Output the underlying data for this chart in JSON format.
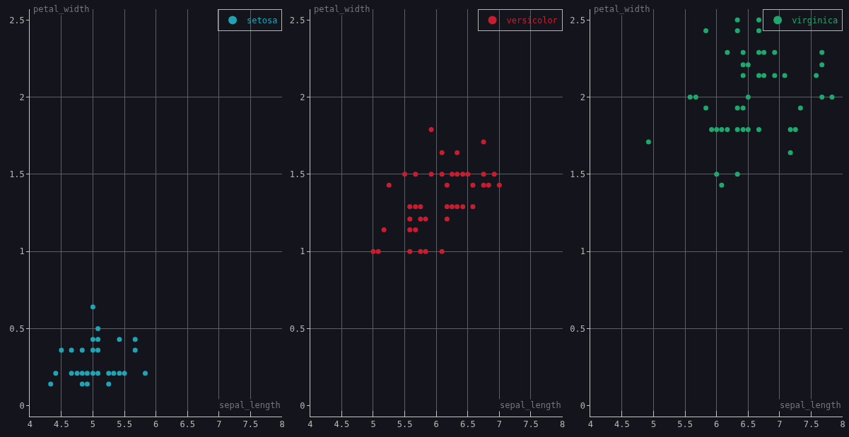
{
  "chart_data": [
    {
      "type": "scatter",
      "xlabel": "sepal_length",
      "ylabel": "petal_width",
      "xlim": [
        4,
        8
      ],
      "ylim": [
        -0.07,
        2.57
      ],
      "xticks": [
        4,
        4.5,
        5,
        5.5,
        6,
        6.5,
        7,
        7.5,
        8
      ],
      "yticks": [
        0,
        0.5,
        1,
        1.5,
        2,
        2.5
      ],
      "grid": true,
      "legend": "top right",
      "marker": "circle",
      "series": [
        {
          "name": "setosa",
          "color": "#1fa3b5",
          "x": [
            5.0,
            5.08,
            5.0,
            5.08,
            5.42,
            5.67,
            4.5,
            4.66,
            4.83,
            5.0,
            5.08,
            5.67,
            4.41,
            4.66,
            4.75,
            4.83,
            4.91,
            5.0,
            5.08,
            5.25,
            5.33,
            5.42,
            5.5,
            5.83,
            4.33,
            4.83,
            4.91,
            5.25
          ],
          "values": [
            0.64,
            0.5,
            0.43,
            0.43,
            0.43,
            0.43,
            0.36,
            0.36,
            0.36,
            0.36,
            0.36,
            0.36,
            0.21,
            0.21,
            0.21,
            0.21,
            0.21,
            0.21,
            0.21,
            0.21,
            0.21,
            0.21,
            0.21,
            0.21,
            0.14,
            0.14,
            0.14,
            0.14
          ]
        }
      ]
    },
    {
      "type": "scatter",
      "xlabel": "sepal_length",
      "ylabel": "petal_width",
      "xlim": [
        4,
        8
      ],
      "ylim": [
        -0.07,
        2.57
      ],
      "xticks": [
        4,
        4.5,
        5,
        5.5,
        6,
        6.5,
        7,
        7.5,
        8
      ],
      "yticks": [
        0,
        0.5,
        1,
        1.5,
        2,
        2.5
      ],
      "grid": true,
      "legend": "top right",
      "marker": "circle",
      "series": [
        {
          "name": "versicolor",
          "color": "#c81d2e",
          "x": [
            5.92,
            6.75,
            6.09,
            6.33,
            5.5,
            5.67,
            5.92,
            6.09,
            6.25,
            6.33,
            6.42,
            6.5,
            6.75,
            6.92,
            5.25,
            6.17,
            6.58,
            6.75,
            6.83,
            7.0,
            5.58,
            5.67,
            5.75,
            6.17,
            6.25,
            6.33,
            6.42,
            6.58,
            5.58,
            5.75,
            5.83,
            6.17,
            5.17,
            5.58,
            5.67,
            5.0,
            5.08,
            5.58,
            5.75,
            5.83,
            6.09
          ],
          "values": [
            1.79,
            1.71,
            1.64,
            1.64,
            1.5,
            1.5,
            1.5,
            1.5,
            1.5,
            1.5,
            1.5,
            1.5,
            1.5,
            1.5,
            1.43,
            1.43,
            1.43,
            1.43,
            1.43,
            1.43,
            1.29,
            1.29,
            1.29,
            1.29,
            1.29,
            1.29,
            1.29,
            1.29,
            1.21,
            1.21,
            1.21,
            1.21,
            1.14,
            1.14,
            1.14,
            1.0,
            1.0,
            1.0,
            1.0,
            1.0,
            1.0
          ]
        }
      ]
    },
    {
      "type": "scatter",
      "xlabel": "sepal_length",
      "ylabel": "petal_width",
      "xlim": [
        4,
        8
      ],
      "ylim": [
        -0.07,
        2.57
      ],
      "xticks": [
        4,
        4.5,
        5,
        5.5,
        6,
        6.5,
        7,
        7.5,
        8
      ],
      "yticks": [
        0,
        0.5,
        1,
        1.5,
        2,
        2.5
      ],
      "grid": true,
      "legend": "top right",
      "marker": "circle",
      "series": [
        {
          "name": "virginica",
          "color": "#1ea86c",
          "x": [
            6.33,
            6.67,
            5.83,
            6.33,
            6.67,
            6.17,
            6.42,
            6.67,
            6.75,
            6.92,
            7.67,
            6.42,
            6.5,
            7.67,
            6.42,
            6.67,
            6.75,
            6.92,
            7.08,
            7.58,
            5.58,
            5.67,
            6.5,
            7.67,
            7.83,
            5.83,
            6.33,
            6.42,
            7.33,
            5.92,
            6.0,
            6.08,
            6.17,
            6.33,
            6.42,
            6.5,
            6.67,
            7.17,
            7.25,
            4.92,
            7.17,
            6.0,
            6.33,
            6.08
          ],
          "values": [
            2.5,
            2.5,
            2.43,
            2.43,
            2.43,
            2.29,
            2.29,
            2.29,
            2.29,
            2.29,
            2.29,
            2.21,
            2.21,
            2.21,
            2.14,
            2.14,
            2.14,
            2.14,
            2.14,
            2.14,
            2.0,
            2.0,
            2.0,
            2.0,
            2.0,
            1.93,
            1.93,
            1.93,
            1.93,
            1.79,
            1.79,
            1.79,
            1.79,
            1.79,
            1.79,
            1.79,
            1.79,
            1.79,
            1.79,
            1.71,
            1.64,
            1.5,
            1.5,
            1.43
          ]
        }
      ]
    }
  ]
}
